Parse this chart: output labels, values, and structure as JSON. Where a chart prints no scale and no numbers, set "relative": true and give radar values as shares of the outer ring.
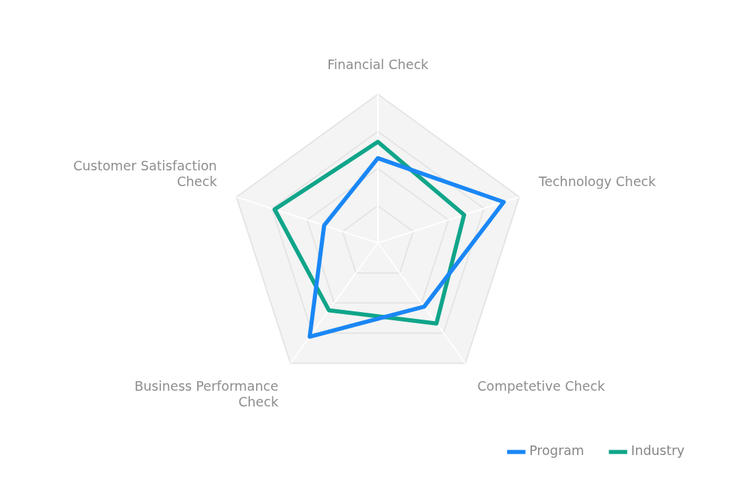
{
  "chart_data": {
    "type": "radar",
    "relative": true,
    "legend": "bottom right",
    "grid": true,
    "categories": [
      "Financial Check",
      "Technology Check",
      "Competetive Check",
      "Business Performance Check",
      "Customer Satisfaction Check"
    ],
    "series": [
      {
        "name": "Program",
        "color": "#1a87f5",
        "values": [
          0.57,
          0.89,
          0.53,
          0.78,
          0.38
        ]
      },
      {
        "name": "Industry",
        "color": "#10a58a",
        "values": [
          0.68,
          0.61,
          0.67,
          0.56,
          0.73
        ]
      }
    ]
  }
}
